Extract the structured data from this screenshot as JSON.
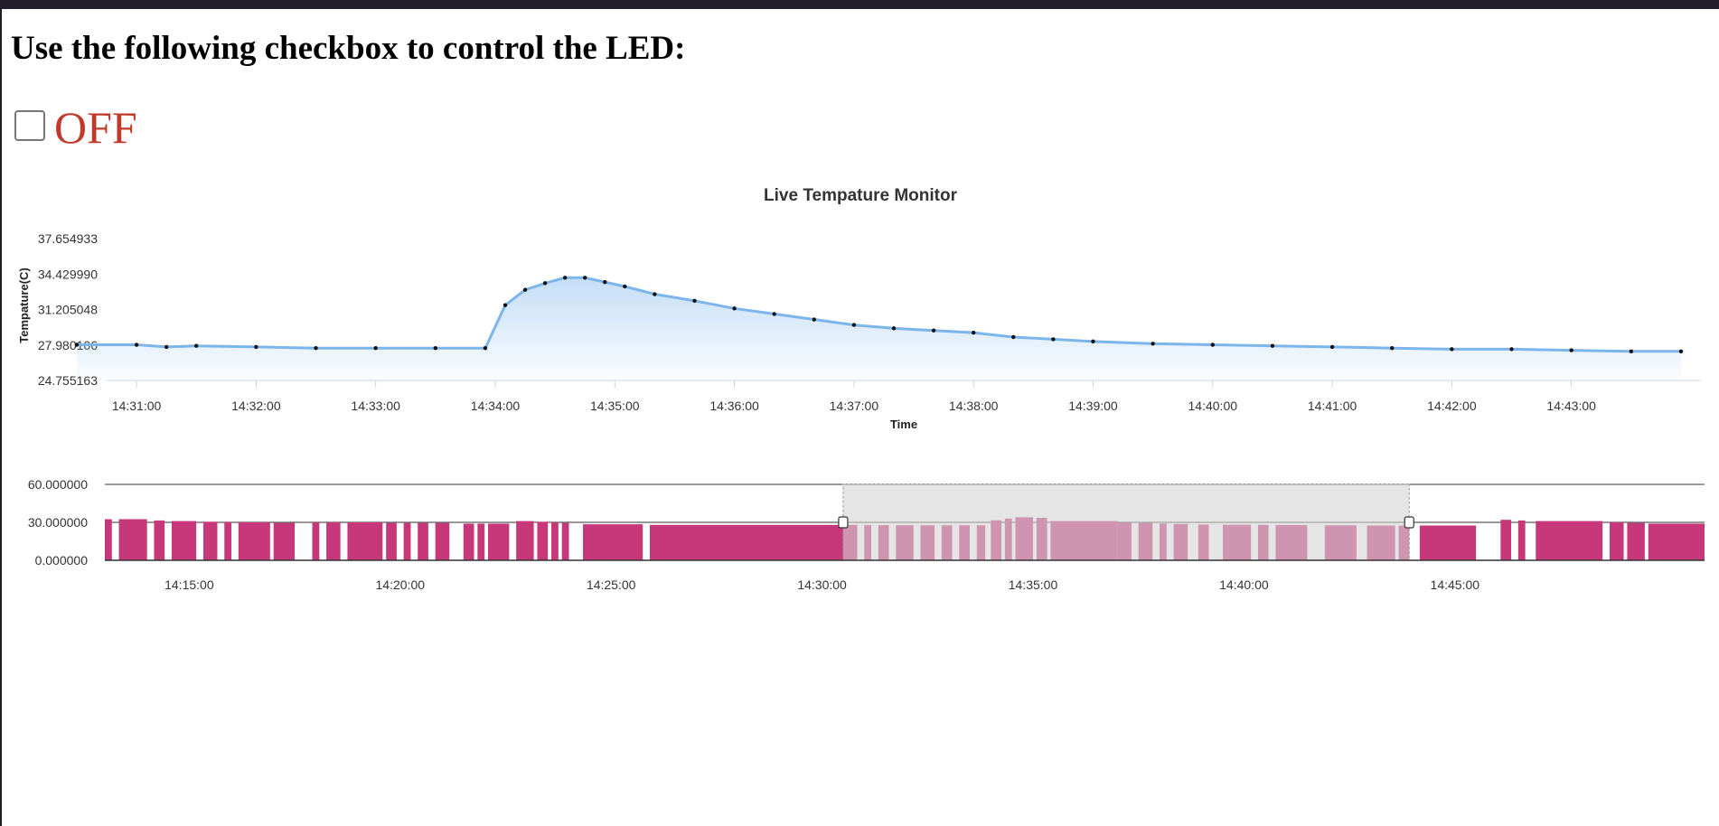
{
  "page": {
    "heading": "Use the following checkbox to control the LED:",
    "led": {
      "checked": false,
      "status_label": "OFF",
      "status_color": "#c0392b"
    }
  },
  "chart_data": [
    {
      "type": "area",
      "title": "Live Tempature Monitor",
      "xlabel": "Time",
      "ylabel": "Tempature(C)",
      "ylim": [
        24.755163,
        37.654933
      ],
      "y_ticks": [
        "24.755163",
        "27.980106",
        "31.205048",
        "34.429990",
        "37.654933"
      ],
      "x_ticks": [
        "14:31:00",
        "14:32:00",
        "14:33:00",
        "14:34:00",
        "14:35:00",
        "14:36:00",
        "14:37:00",
        "14:38:00",
        "14:39:00",
        "14:40:00",
        "14:41:00",
        "14:42:00",
        "14:43:00"
      ],
      "line_color": "#7cb5ec",
      "marker_color": "#111111",
      "series": [
        {
          "x": [
            "14:30:30",
            "14:31:00",
            "14:31:15",
            "14:31:30",
            "14:32:00",
            "14:32:30",
            "14:33:00",
            "14:33:30",
            "14:33:55",
            "14:34:05",
            "14:34:15",
            "14:34:25",
            "14:34:35",
            "14:34:45",
            "14:34:55",
            "14:35:05",
            "14:35:20",
            "14:35:40",
            "14:36:00",
            "14:36:20",
            "14:36:40",
            "14:37:00",
            "14:37:20",
            "14:37:40",
            "14:38:00",
            "14:38:20",
            "14:38:40",
            "14:39:00",
            "14:39:30",
            "14:40:00",
            "14:40:30",
            "14:41:00",
            "14:41:30",
            "14:42:00",
            "14:42:30",
            "14:43:00",
            "14:43:30",
            "14:43:55"
          ],
          "y": [
            28.0,
            28.0,
            27.8,
            27.9,
            27.8,
            27.7,
            27.7,
            27.7,
            27.7,
            31.6,
            33.0,
            33.6,
            34.1,
            34.1,
            33.7,
            33.3,
            32.6,
            32.0,
            31.3,
            30.8,
            30.3,
            29.8,
            29.5,
            29.3,
            29.1,
            28.7,
            28.5,
            28.3,
            28.1,
            28.0,
            27.9,
            27.8,
            27.7,
            27.6,
            27.6,
            27.5,
            27.4,
            27.4
          ]
        }
      ]
    },
    {
      "type": "bar",
      "title": "",
      "ylim": [
        0,
        60
      ],
      "y_ticks": [
        "0.000000",
        "30.000000",
        "60.000000"
      ],
      "x_ticks": [
        "14:15:00",
        "14:20:00",
        "14:25:00",
        "14:30:00",
        "14:35:00",
        "14:40:00",
        "14:45:00"
      ],
      "bar_color": "#c7387b",
      "selection": {
        "from": "14:30:30",
        "to": "14:43:55",
        "fill": "#d3d3d3"
      },
      "segments": [
        {
          "from": "14:13:00",
          "to": "14:13:10",
          "value": 32.5
        },
        {
          "from": "14:13:20",
          "to": "14:14:00",
          "value": 32.5
        },
        {
          "from": "14:14:10",
          "to": "14:14:25",
          "value": 31.5
        },
        {
          "from": "14:14:35",
          "to": "14:15:10",
          "value": 31.0
        },
        {
          "from": "14:15:20",
          "to": "14:15:40",
          "value": 30.5
        },
        {
          "from": "14:15:50",
          "to": "14:16:00",
          "value": 30.5
        },
        {
          "from": "14:16:10",
          "to": "14:16:55",
          "value": 30.0
        },
        {
          "from": "14:17:00",
          "to": "14:17:30",
          "value": 29.5
        },
        {
          "from": "14:17:55",
          "to": "14:18:05",
          "value": 30.0
        },
        {
          "from": "14:18:15",
          "to": "14:18:35",
          "value": 30.0
        },
        {
          "from": "14:18:45",
          "to": "14:19:35",
          "value": 30.0
        },
        {
          "from": "14:19:40",
          "to": "14:19:55",
          "value": 29.5
        },
        {
          "from": "14:20:05",
          "to": "14:20:15",
          "value": 29.5
        },
        {
          "from": "14:20:25",
          "to": "14:20:40",
          "value": 29.5
        },
        {
          "from": "14:20:50",
          "to": "14:21:10",
          "value": 29.5
        },
        {
          "from": "14:21:30",
          "to": "14:21:45",
          "value": 29.0
        },
        {
          "from": "14:21:50",
          "to": "14:22:00",
          "value": 29.0
        },
        {
          "from": "14:22:05",
          "to": "14:22:35",
          "value": 29.0
        },
        {
          "from": "14:22:45",
          "to": "14:23:10",
          "value": 31.0
        },
        {
          "from": "14:23:15",
          "to": "14:23:30",
          "value": 30.5
        },
        {
          "from": "14:23:35",
          "to": "14:23:45",
          "value": 30.0
        },
        {
          "from": "14:23:50",
          "to": "14:24:00",
          "value": 29.5
        },
        {
          "from": "14:24:20",
          "to": "14:25:45",
          "value": 28.5
        },
        {
          "from": "14:25:55",
          "to": "14:30:30",
          "value": 28.0
        },
        {
          "from": "14:30:30",
          "to": "14:30:50",
          "value": 28.0
        },
        {
          "from": "14:31:00",
          "to": "14:31:10",
          "value": 27.8
        },
        {
          "from": "14:31:20",
          "to": "14:31:35",
          "value": 27.8
        },
        {
          "from": "14:31:45",
          "to": "14:32:10",
          "value": 27.8
        },
        {
          "from": "14:32:20",
          "to": "14:32:40",
          "value": 27.7
        },
        {
          "from": "14:32:50",
          "to": "14:33:05",
          "value": 27.7
        },
        {
          "from": "14:33:15",
          "to": "14:33:30",
          "value": 27.7
        },
        {
          "from": "14:33:40",
          "to": "14:33:52",
          "value": 27.7
        },
        {
          "from": "14:34:00",
          "to": "14:34:15",
          "value": 31.6
        },
        {
          "from": "14:34:20",
          "to": "14:34:30",
          "value": 33.0
        },
        {
          "from": "14:34:35",
          "to": "14:35:00",
          "value": 34.0
        },
        {
          "from": "14:35:05",
          "to": "14:35:20",
          "value": 33.6
        },
        {
          "from": "14:35:25",
          "to": "14:37:00",
          "value": 31.0
        },
        {
          "from": "14:37:00",
          "to": "14:37:20",
          "value": 29.8
        },
        {
          "from": "14:37:30",
          "to": "14:37:50",
          "value": 29.5
        },
        {
          "from": "14:38:00",
          "to": "14:38:10",
          "value": 29.1
        },
        {
          "from": "14:38:20",
          "to": "14:38:40",
          "value": 28.7
        },
        {
          "from": "14:38:55",
          "to": "14:39:10",
          "value": 28.3
        },
        {
          "from": "14:39:30",
          "to": "14:40:10",
          "value": 28.1
        },
        {
          "from": "14:40:20",
          "to": "14:40:35",
          "value": 28.0
        },
        {
          "from": "14:40:45",
          "to": "14:41:30",
          "value": 27.9
        },
        {
          "from": "14:41:55",
          "to": "14:42:40",
          "value": 27.7
        },
        {
          "from": "14:42:55",
          "to": "14:43:35",
          "value": 27.5
        },
        {
          "from": "14:43:40",
          "to": "14:43:55",
          "value": 27.4
        },
        {
          "from": "14:44:10",
          "to": "14:45:30",
          "value": 27.5
        },
        {
          "from": "14:46:05",
          "to": "14:46:20",
          "value": 32.0
        },
        {
          "from": "14:46:30",
          "to": "14:46:40",
          "value": 31.5
        },
        {
          "from": "14:46:55",
          "to": "14:48:30",
          "value": 31.0
        },
        {
          "from": "14:48:40",
          "to": "14:49:00",
          "value": 30.0
        },
        {
          "from": "14:49:05",
          "to": "14:49:30",
          "value": 29.5
        },
        {
          "from": "14:49:35",
          "to": "14:50:55",
          "value": 29.0
        }
      ]
    }
  ]
}
